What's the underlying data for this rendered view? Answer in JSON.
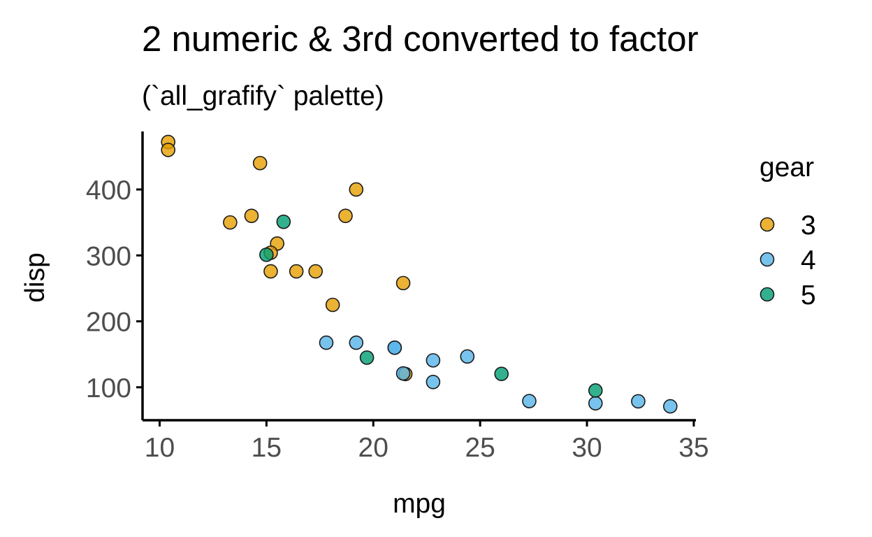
{
  "chart_data": {
    "type": "scatter",
    "title": "2 numeric & 3rd converted to factor",
    "subtitle": "(`all_grafify` palette)",
    "xlabel": "mpg",
    "ylabel": "disp",
    "xlim": [
      9.2,
      35.1
    ],
    "ylim": [
      50,
      488
    ],
    "xticks": [
      10,
      15,
      20,
      25,
      30,
      35
    ],
    "yticks": [
      100,
      200,
      300,
      400
    ],
    "grid": false,
    "legend": {
      "title": "gear",
      "position": "right",
      "entries": [
        {
          "label": "3",
          "color": "#E69F00"
        },
        {
          "label": "4",
          "color": "#56B4E9"
        },
        {
          "label": "5",
          "color": "#009E73"
        }
      ]
    },
    "series": [
      {
        "name": "3",
        "color": "#E69F00",
        "points": [
          {
            "x": 21.4,
            "y": 258
          },
          {
            "x": 18.7,
            "y": 360
          },
          {
            "x": 18.1,
            "y": 225
          },
          {
            "x": 14.3,
            "y": 360
          },
          {
            "x": 16.4,
            "y": 275.8
          },
          {
            "x": 17.3,
            "y": 275.8
          },
          {
            "x": 15.2,
            "y": 275.8
          },
          {
            "x": 10.4,
            "y": 472
          },
          {
            "x": 10.4,
            "y": 460
          },
          {
            "x": 14.7,
            "y": 440
          },
          {
            "x": 21.5,
            "y": 120.1
          },
          {
            "x": 15.5,
            "y": 318
          },
          {
            "x": 15.2,
            "y": 304
          },
          {
            "x": 13.3,
            "y": 350
          },
          {
            "x": 19.2,
            "y": 400
          }
        ]
      },
      {
        "name": "4",
        "color": "#56B4E9",
        "points": [
          {
            "x": 21.0,
            "y": 160
          },
          {
            "x": 21.0,
            "y": 160
          },
          {
            "x": 22.8,
            "y": 108
          },
          {
            "x": 24.4,
            "y": 146.7
          },
          {
            "x": 22.8,
            "y": 140.8
          },
          {
            "x": 19.2,
            "y": 167.6
          },
          {
            "x": 17.8,
            "y": 167.6
          },
          {
            "x": 32.4,
            "y": 78.7
          },
          {
            "x": 30.4,
            "y": 75.7
          },
          {
            "x": 33.9,
            "y": 71.1
          },
          {
            "x": 27.3,
            "y": 79
          },
          {
            "x": 21.4,
            "y": 121
          }
        ]
      },
      {
        "name": "5",
        "color": "#009E73",
        "points": [
          {
            "x": 26.0,
            "y": 120.3
          },
          {
            "x": 30.4,
            "y": 95.1
          },
          {
            "x": 15.8,
            "y": 351
          },
          {
            "x": 19.7,
            "y": 145
          },
          {
            "x": 15.0,
            "y": 301
          }
        ]
      }
    ]
  }
}
